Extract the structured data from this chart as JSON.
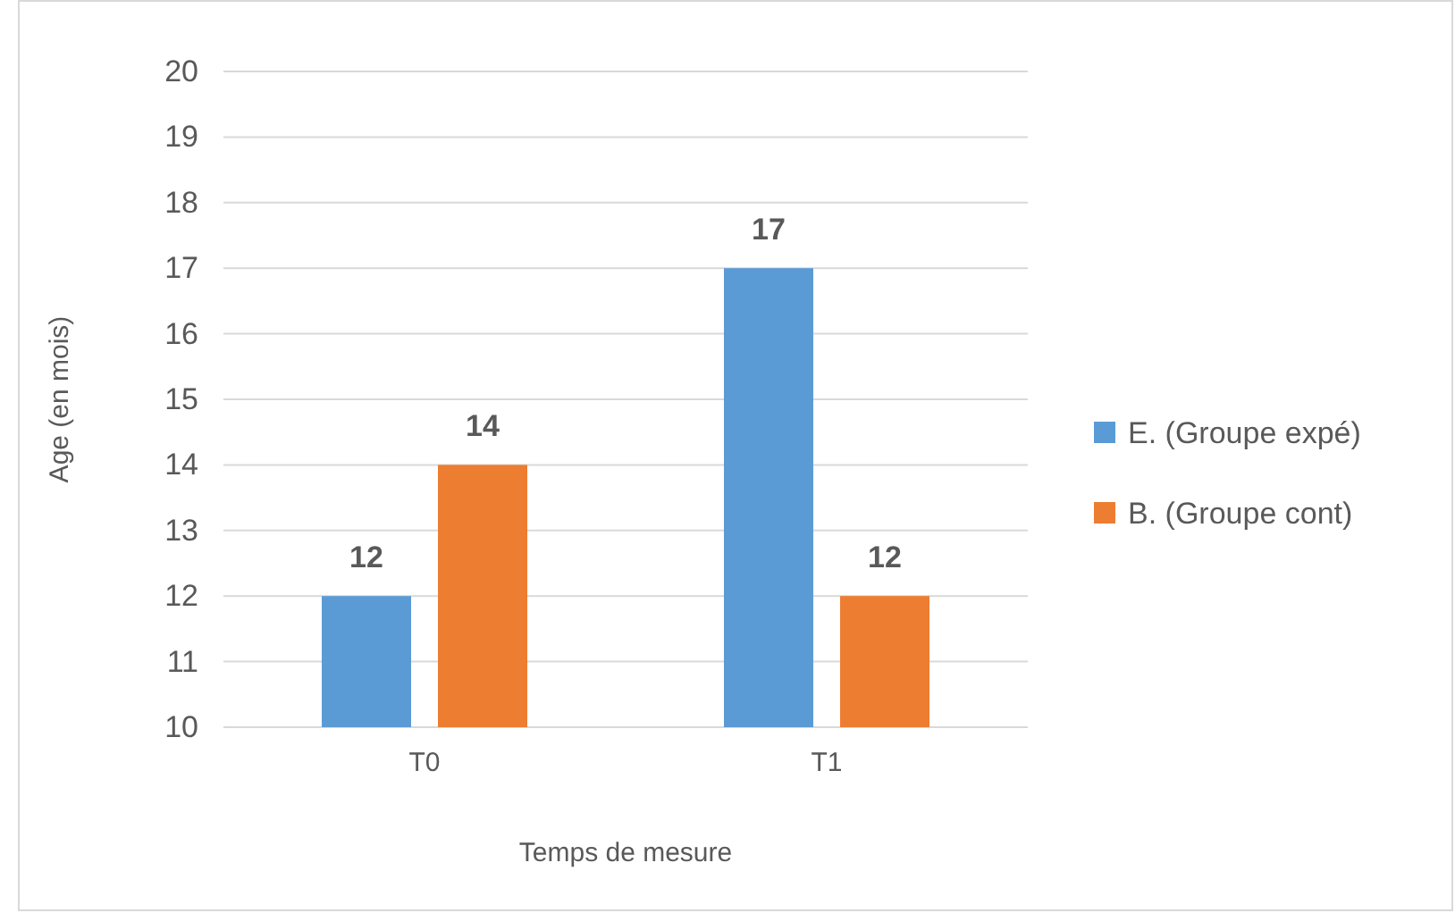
{
  "chart_data": {
    "type": "bar",
    "xlabel": "Temps de mesure",
    "ylabel": "Age  (en mois)",
    "categories": [
      "T0",
      "T1"
    ],
    "series": [
      {
        "name": "E. (Groupe expé)",
        "color": "#5b9bd5",
        "values": [
          12,
          17
        ]
      },
      {
        "name": "B. (Groupe cont)",
        "color": "#ed7d31",
        "values": [
          14,
          12
        ]
      }
    ],
    "ylim": [
      10,
      20
    ],
    "yticks": [
      10,
      11,
      12,
      13,
      14,
      15,
      16,
      17,
      18,
      19,
      20
    ],
    "grid": "y",
    "legend": "right",
    "data_labels": true
  }
}
